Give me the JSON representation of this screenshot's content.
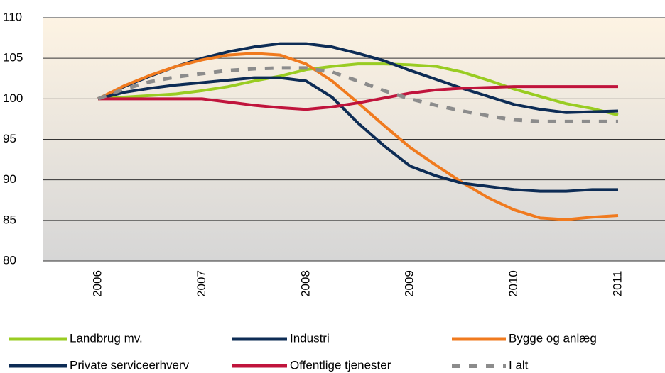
{
  "chart_data": {
    "type": "line",
    "categories": [
      "2006",
      null,
      null,
      null,
      "2007",
      null,
      null,
      null,
      "2008",
      null,
      null,
      null,
      "2009",
      null,
      null,
      null,
      "2010",
      null,
      null,
      null,
      "2011"
    ],
    "series": [
      {
        "name": "Landbrug mv.",
        "color": "#99cc22",
        "values": [
          100,
          100.2,
          100.4,
          100.6,
          101,
          101.5,
          102.2,
          102.8,
          103.6,
          104,
          104.3,
          104.3,
          104.2,
          104,
          103.3,
          102.3,
          101.2,
          100.3,
          99.4,
          98.8,
          98
        ]
      },
      {
        "name": "Industri",
        "color": "#0d2c55",
        "values": [
          100,
          101.5,
          102.8,
          104,
          105,
          105.8,
          106.4,
          106.8,
          106.8,
          106.4,
          105.6,
          104.7,
          103.5,
          102.4,
          101.3,
          100.3,
          99.3,
          98.7,
          98.3,
          98.4,
          98.5
        ]
      },
      {
        "name": "Bygge og anlæg",
        "color": "#f07a1e",
        "values": [
          100,
          101.6,
          102.9,
          104,
          104.8,
          105.4,
          105.6,
          105.4,
          104.3,
          102.2,
          99.5,
          96.7,
          94,
          91.8,
          89.7,
          87.8,
          86.3,
          85.3,
          85.1,
          85.4,
          85.6
        ]
      },
      {
        "name": "Private serviceerhverv",
        "color": "#0d2c55",
        "values": [
          100,
          100.8,
          101.3,
          101.7,
          102,
          102.3,
          102.6,
          102.6,
          102.2,
          100.2,
          97,
          94.2,
          91.7,
          90.5,
          89.6,
          89.2,
          88.8,
          88.6,
          88.6,
          88.8,
          88.8
        ]
      },
      {
        "name": "Offentlige tjenester",
        "color": "#c0143c",
        "values": [
          100,
          100,
          100,
          100,
          100,
          99.6,
          99.2,
          98.9,
          98.7,
          99,
          99.5,
          100.1,
          100.7,
          101.1,
          101.3,
          101.4,
          101.5,
          101.5,
          101.5,
          101.5,
          101.5
        ]
      },
      {
        "name": "I alt",
        "color": "#8c8c8c",
        "dashed": true,
        "values": [
          100,
          101.2,
          102.1,
          102.7,
          103.1,
          103.5,
          103.7,
          103.8,
          103.8,
          103.3,
          102.2,
          101,
          100,
          99.2,
          98.5,
          97.9,
          97.4,
          97.2,
          97.2,
          97.2,
          97.2
        ]
      }
    ],
    "ylim": [
      80,
      110
    ],
    "yticks": [
      80,
      85,
      90,
      95,
      100,
      105,
      110
    ],
    "grid": true
  }
}
